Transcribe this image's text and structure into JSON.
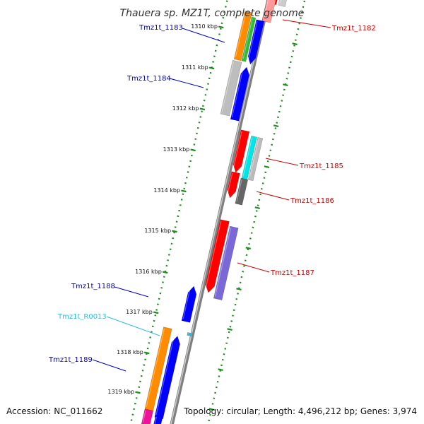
{
  "title": "Thauera sp. MZ1T, complete genome",
  "footer": {
    "accession": "Accession: NC_011662",
    "topology": "Topology: circular; Length: 4,496,212 bp; Genes: 3,974"
  },
  "colors": {
    "backbone": "#9a9a9a",
    "dots": "#1f8c1f",
    "forward_label": "#0000c8",
    "reverse_label": "#c80000",
    "rna_label": "#33bbdd"
  },
  "ticks": [
    "1310 kbp",
    "1311 kbp",
    "1312 kbp",
    "1313 kbp",
    "1314 kbp",
    "1315 kbp",
    "1316 kbp",
    "1317 kbp",
    "1318 kbp",
    "1319 kbp"
  ],
  "labels": [
    {
      "id": "Tmz1t_1182",
      "text": "Tmz1t_1182",
      "strand": "reverse"
    },
    {
      "id": "Tmz1t_1183",
      "text": "Tmz1t_1183",
      "strand": "forward"
    },
    {
      "id": "Tmz1t_1184",
      "text": "Tmz1t_1184",
      "strand": "forward"
    },
    {
      "id": "Tmz1t_1185",
      "text": "Tmz1t_1185",
      "strand": "reverse"
    },
    {
      "id": "Tmz1t_1186",
      "text": "Tmz1t_1186",
      "strand": "reverse"
    },
    {
      "id": "Tmz1t_1187",
      "text": "Tmz1t_1187",
      "strand": "reverse"
    },
    {
      "id": "Tmz1t_1188",
      "text": "Tmz1t_1188",
      "strand": "forward"
    },
    {
      "id": "Tmz1t_R0013",
      "text": "Tmz1t_R0013",
      "strand": "rna"
    },
    {
      "id": "Tmz1t_1189",
      "text": "Tmz1t_1189",
      "strand": "forward"
    }
  ]
}
